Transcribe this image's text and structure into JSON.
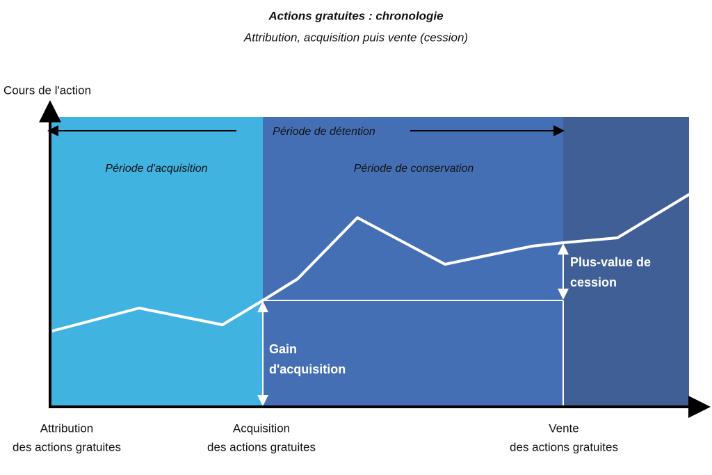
{
  "header": {
    "title": "Actions gratuites : chronologie",
    "subtitle": "Attribution, acquisition puis vente (cession)"
  },
  "axis": {
    "y_label": "Cours de l'action"
  },
  "periods": {
    "holding": "Période de détention",
    "acquisition": "Période d'acquisition",
    "conservation": "Période de conservation"
  },
  "annotations": {
    "capital_gain": [
      "Plus-value de",
      "cession"
    ],
    "acquisition_gain": [
      "Gain",
      "d'acquisition"
    ]
  },
  "milestones": [
    {
      "lines": [
        "Attribution",
        "des actions gratuites"
      ]
    },
    {
      "lines": [
        "Acquisition",
        "des actions gratuites"
      ]
    },
    {
      "lines": [
        "Vente",
        "des actions gratuites"
      ]
    }
  ]
}
